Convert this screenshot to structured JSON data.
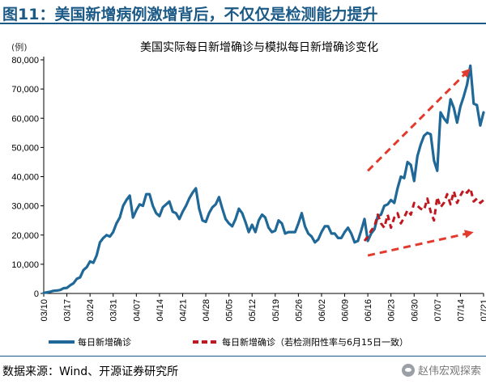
{
  "header": {
    "figure_title": "图11：美国新增病例激增背后，不仅仅是检测能力提升"
  },
  "footer": {
    "source": "数据来源：Wind、开源证券研究所",
    "watermark": "赵伟宏观探索"
  },
  "icons": {
    "watermark_icon": "wechat-icon"
  },
  "colors": {
    "title": "#1b5a86",
    "actual_series": "#1f6897",
    "simulated_series": "#c01820",
    "arrow": "#e23b2e"
  },
  "chart_data": {
    "type": "line",
    "title": "美国实际每日新增确诊与模拟每日新增确诊变化",
    "y_unit": "(例)",
    "ylim": [
      0,
      80000
    ],
    "yticks": [
      0,
      10000,
      20000,
      30000,
      40000,
      50000,
      60000,
      70000,
      80000
    ],
    "ytick_labels": [
      "0",
      "10,000",
      "20,000",
      "30,000",
      "40,000",
      "50,000",
      "60,000",
      "70,000",
      "80,000"
    ],
    "x_start": "03/10",
    "x_end": "07/21",
    "xtick_labels": [
      "03/10",
      "03/17",
      "03/24",
      "03/31",
      "04/07",
      "04/14",
      "04/21",
      "04/28",
      "05/05",
      "05/12",
      "05/19",
      "05/26",
      "06/02",
      "06/09",
      "06/16",
      "06/23",
      "06/30",
      "07/07",
      "07/14",
      "07/21"
    ],
    "grid": false,
    "legend_position": "bottom",
    "series": [
      {
        "name": "每日新增确诊",
        "style": "solid",
        "x": [
          "03/10",
          "03/11",
          "03/12",
          "03/13",
          "03/14",
          "03/15",
          "03/16",
          "03/17",
          "03/18",
          "03/19",
          "03/20",
          "03/21",
          "03/22",
          "03/23",
          "03/24",
          "03/25",
          "03/26",
          "03/27",
          "03/28",
          "03/29",
          "03/30",
          "03/31",
          "04/01",
          "04/02",
          "04/03",
          "04/04",
          "04/05",
          "04/06",
          "04/07",
          "04/08",
          "04/09",
          "04/10",
          "04/11",
          "04/12",
          "04/13",
          "04/14",
          "04/15",
          "04/16",
          "04/17",
          "04/18",
          "04/19",
          "04/20",
          "04/21",
          "04/22",
          "04/23",
          "04/24",
          "04/25",
          "04/26",
          "04/27",
          "04/28",
          "04/29",
          "04/30",
          "05/01",
          "05/02",
          "05/03",
          "05/04",
          "05/05",
          "05/06",
          "05/07",
          "05/08",
          "05/09",
          "05/10",
          "05/11",
          "05/12",
          "05/13",
          "05/14",
          "05/15",
          "05/16",
          "05/17",
          "05/18",
          "05/19",
          "05/20",
          "05/21",
          "05/22",
          "05/23",
          "05/24",
          "05/25",
          "05/26",
          "05/27",
          "05/28",
          "05/29",
          "05/30",
          "05/31",
          "06/01",
          "06/02",
          "06/03",
          "06/04",
          "06/05",
          "06/06",
          "06/07",
          "06/08",
          "06/09",
          "06/10",
          "06/11",
          "06/12",
          "06/13",
          "06/14",
          "06/15",
          "06/16",
          "06/17",
          "06/18",
          "06/19",
          "06/20",
          "06/21",
          "06/22",
          "06/23",
          "06/24",
          "06/25",
          "06/26",
          "06/27",
          "06/28",
          "06/29",
          "06/30",
          "07/01",
          "07/02",
          "07/03",
          "07/04",
          "07/05",
          "07/06",
          "07/07",
          "07/08",
          "07/09",
          "07/10",
          "07/11",
          "07/12",
          "07/13",
          "07/14",
          "07/15",
          "07/16",
          "07/17",
          "07/18",
          "07/19",
          "07/20",
          "07/21"
        ],
        "values": [
          200,
          400,
          600,
          900,
          1000,
          1200,
          1800,
          1900,
          2800,
          3500,
          5000,
          5500,
          8000,
          9000,
          11000,
          10500,
          13000,
          17500,
          19000,
          20000,
          19500,
          21000,
          24000,
          26000,
          30000,
          32000,
          33500,
          26000,
          28500,
          30500,
          30000,
          34000,
          34000,
          30000,
          27500,
          26500,
          29500,
          30500,
          31500,
          28000,
          27500,
          25500,
          28000,
          30000,
          32500,
          34500,
          36000,
          29000,
          25000,
          24500,
          27500,
          29500,
          30500,
          33000,
          29000,
          25500,
          24000,
          23000,
          25500,
          29000,
          27500,
          24500,
          21000,
          23500,
          21000,
          25000,
          27000,
          26000,
          22500,
          21000,
          21500,
          25000,
          24000,
          20500,
          21000,
          21000,
          21000,
          24000,
          27500,
          23000,
          20500,
          19500,
          17500,
          18500,
          21000,
          23000,
          23000,
          20500,
          20500,
          19000,
          19000,
          21000,
          22500,
          20500,
          17500,
          18000,
          21500,
          25500,
          18000,
          20500,
          22000,
          26500,
          27000,
          30000,
          30500,
          32000,
          31000,
          36000,
          40000,
          39500,
          45000,
          44000,
          38500,
          47000,
          51000,
          54000,
          55000,
          54500,
          45500,
          42000,
          62000,
          60000,
          58500,
          66500,
          63500,
          58500,
          64000,
          67500,
          71500,
          78000,
          65000,
          64500,
          57500,
          62000
        ]
      },
      {
        "name": "每日新增确诊（若检测阳性率与6月15日一致）",
        "style": "dashed",
        "x": [
          "06/15",
          "06/16",
          "06/17",
          "06/18",
          "06/19",
          "06/20",
          "06/21",
          "06/22",
          "06/23",
          "06/24",
          "06/25",
          "06/26",
          "06/27",
          "06/28",
          "06/29",
          "06/30",
          "07/01",
          "07/02",
          "07/03",
          "07/04",
          "07/05",
          "07/06",
          "07/07",
          "07/08",
          "07/09",
          "07/10",
          "07/11",
          "07/12",
          "07/13",
          "07/14",
          "07/15",
          "07/16",
          "07/17",
          "07/18",
          "07/19",
          "07/20",
          "07/21"
        ],
        "values": [
          18000,
          19500,
          21500,
          23000,
          27000,
          24000,
          22500,
          27000,
          22500,
          26000,
          27500,
          24000,
          26000,
          28500,
          27000,
          31000,
          30000,
          29000,
          28500,
          32500,
          28000,
          25000,
          33000,
          29500,
          31000,
          34000,
          30500,
          35000,
          31000,
          33500,
          35500,
          34500,
          36000,
          31500,
          32500,
          31000,
          32000
        ]
      }
    ],
    "annotations": [
      {
        "type": "arrow",
        "style": "dashed",
        "from": [
          "06/16",
          42000
        ],
        "to": [
          "07/17",
          77000
        ]
      },
      {
        "type": "arrow",
        "style": "dashed",
        "from": [
          "06/16",
          13000
        ],
        "to": [
          "07/18",
          21000
        ]
      }
    ]
  }
}
